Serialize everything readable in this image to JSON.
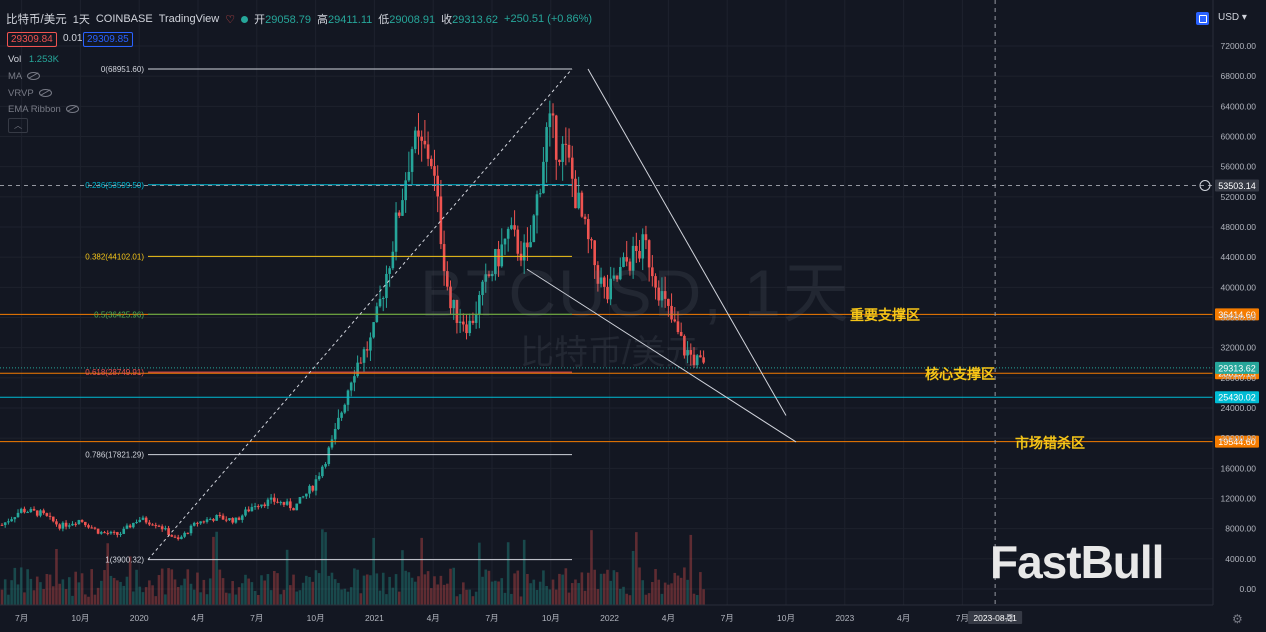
{
  "header": {
    "symbol": "比特币/美元",
    "interval": "1天",
    "exchange": "COINBASE",
    "platform": "TradingView",
    "open_label": "开",
    "open": "29058.79",
    "high_label": "高",
    "high": "29411.11",
    "low_label": "低",
    "low": "29008.91",
    "close_label": "收",
    "close": "29313.62",
    "change": "+250.51 (+0.86%)"
  },
  "quote": {
    "sell": "29309.84",
    "spread": "0.01",
    "buy": "29309.85"
  },
  "indicators": {
    "vol_label": "Vol",
    "vol_value": "1.253K",
    "ma": "MA",
    "vrvp": "VRVP",
    "ema": "EMA Ribbon"
  },
  "currency": "USD",
  "watermark": {
    "symbol": "BTCUSD, 1天",
    "name": "比特币/美元",
    "brand": "FastBull"
  },
  "colors": {
    "up": "#26a69a",
    "down": "#ef5350",
    "orange": "#f57c00",
    "cyan": "#00bcd4",
    "yellow": "#f5c518"
  },
  "chart_data": {
    "type": "candlestick",
    "y_axis_ticks": [
      "72000.00",
      "68000.00",
      "64000.00",
      "60000.00",
      "56000.00",
      "52000.00",
      "48000.00",
      "44000.00",
      "40000.00",
      "36000.00",
      "32000.00",
      "28000.00",
      "24000.00",
      "20000.00",
      "16000.00",
      "12000.00",
      "8000.00",
      "4000.00",
      "0.00"
    ],
    "x_axis_ticks": [
      "7月",
      "10月",
      "2020",
      "4月",
      "7月",
      "10月",
      "2021",
      "4月",
      "7月",
      "10月",
      "2022",
      "4月",
      "7月",
      "10月",
      "2023",
      "4月",
      "7月",
      "2023-08-21",
      "月"
    ],
    "ylim": [
      0,
      74000
    ],
    "approx_close_series": [
      {
        "date": "2019-06",
        "close": 8500
      },
      {
        "date": "2019-07",
        "close": 10500
      },
      {
        "date": "2019-08",
        "close": 10000
      },
      {
        "date": "2019-09",
        "close": 8300
      },
      {
        "date": "2019-10",
        "close": 9200
      },
      {
        "date": "2019-11",
        "close": 7500
      },
      {
        "date": "2019-12",
        "close": 7200
      },
      {
        "date": "2020-01",
        "close": 9300
      },
      {
        "date": "2020-02",
        "close": 8600
      },
      {
        "date": "2020-03",
        "close": 6400
      },
      {
        "date": "2020-04",
        "close": 8800
      },
      {
        "date": "2020-05",
        "close": 9500
      },
      {
        "date": "2020-06",
        "close": 9100
      },
      {
        "date": "2020-07",
        "close": 11300
      },
      {
        "date": "2020-08",
        "close": 11700
      },
      {
        "date": "2020-09",
        "close": 10800
      },
      {
        "date": "2020-10",
        "close": 13800
      },
      {
        "date": "2020-11",
        "close": 19700
      },
      {
        "date": "2020-12",
        "close": 29000
      },
      {
        "date": "2021-01",
        "close": 33100
      },
      {
        "date": "2021-02",
        "close": 45200
      },
      {
        "date": "2021-03",
        "close": 58800
      },
      {
        "date": "2021-04",
        "close": 57700
      },
      {
        "date": "2021-05",
        "close": 37300
      },
      {
        "date": "2021-06",
        "close": 35000
      },
      {
        "date": "2021-07",
        "close": 41500
      },
      {
        "date": "2021-08",
        "close": 47100
      },
      {
        "date": "2021-09",
        "close": 43800
      },
      {
        "date": "2021-10",
        "close": 61300
      },
      {
        "date": "2021-11",
        "close": 57000
      },
      {
        "date": "2021-12",
        "close": 46300
      },
      {
        "date": "2022-01",
        "close": 38500
      },
      {
        "date": "2022-02",
        "close": 43200
      },
      {
        "date": "2022-03",
        "close": 45500
      },
      {
        "date": "2022-04",
        "close": 37700
      },
      {
        "date": "2022-05",
        "close": 31800
      },
      {
        "date": "2022-06",
        "close": 29313.62
      }
    ],
    "fibonacci": [
      {
        "label": "0(68951.60)",
        "price": 68951.6
      },
      {
        "label": "0.236(53599.50)",
        "price": 53599.5
      },
      {
        "label": "0.382(44102.01)",
        "price": 44102.01
      },
      {
        "label": "0.5(36425.96)",
        "price": 36425.96
      },
      {
        "label": "0.618(28749.91)",
        "price": 28749.91
      },
      {
        "label": "0.786(17821.29)",
        "price": 17821.29
      },
      {
        "label": "1(3900.32)",
        "price": 3900.32
      }
    ],
    "horizontal_levels": [
      {
        "price_label": "36414.60",
        "price": 36414.6,
        "zone": "重要支撑区",
        "color": "orange"
      },
      {
        "price_label": "28615.13",
        "price": 28615.13,
        "zone": "核心支撑区",
        "color": "orange"
      },
      {
        "price_label": "25430.02",
        "price": 25430.02,
        "zone": "",
        "color": "cyan"
      },
      {
        "price_label": "19544.60",
        "price": 19544.6,
        "zone": "市场错杀区",
        "color": "orange"
      }
    ],
    "last_price_label": "29313.62",
    "crosshair_price_label": "53503.14",
    "crosshair_date_label": "2023-08-21"
  }
}
